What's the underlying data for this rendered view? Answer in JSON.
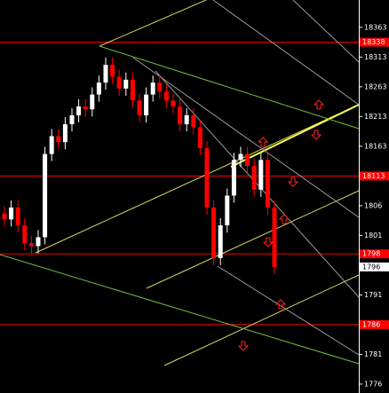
{
  "chart_data": {
    "type": "candlestick",
    "up_color": "#ffffff",
    "down_color": "#ff0000",
    "open": [
      18050,
      18040,
      18060,
      18030,
      18000,
      17995,
      18010,
      18150,
      18180,
      18170,
      18200,
      18215,
      18230,
      18225,
      18250,
      18270,
      18300,
      18280,
      18260,
      18275,
      18240,
      18215,
      18250,
      18270,
      18255,
      18240,
      18230,
      18200,
      18215,
      18195,
      18160,
      18060,
      17975,
      18030,
      18080,
      18140,
      18150,
      18130,
      18090,
      18140,
      18060
    ],
    "high": [
      18062,
      18072,
      18072,
      18042,
      18012,
      18022,
      18162,
      18192,
      18192,
      18212,
      18227,
      18242,
      18242,
      18262,
      18282,
      18312,
      18312,
      18292,
      18287,
      18287,
      18252,
      18262,
      18282,
      18282,
      18267,
      18252,
      18242,
      18227,
      18227,
      18207,
      18172,
      18072,
      18042,
      18092,
      18152,
      18162,
      18162,
      18142,
      18152,
      18152,
      18072
    ],
    "low": [
      18028,
      18028,
      18018,
      17988,
      17983,
      17983,
      17998,
      18138,
      18158,
      18158,
      18188,
      18203,
      18213,
      18213,
      18238,
      18258,
      18268,
      18248,
      18248,
      18228,
      18203,
      18203,
      18238,
      18243,
      18228,
      18218,
      18188,
      18188,
      18183,
      18148,
      18048,
      17963,
      17963,
      18018,
      18068,
      18128,
      18118,
      18078,
      18078,
      18048,
      17948
    ],
    "close": [
      18040,
      18060,
      18030,
      18000,
      17995,
      18010,
      18150,
      18180,
      18170,
      18200,
      18215,
      18230,
      18225,
      18250,
      18270,
      18300,
      18280,
      18260,
      18275,
      18240,
      18215,
      18250,
      18270,
      18255,
      18240,
      18230,
      18200,
      18215,
      18195,
      18160,
      18060,
      17975,
      18030,
      18080,
      18140,
      18150,
      18130,
      18090,
      18140,
      18060,
      17960
    ],
    "ylim": [
      17748,
      18409
    ],
    "yticks": [
      18363,
      18313,
      18263,
      18213,
      18163,
      {
        "value": 18063,
        "label": "1806"
      },
      {
        "value": 18013,
        "label": "1801"
      },
      {
        "value": 17913,
        "label": "1791"
      },
      {
        "value": 17813,
        "label": "1781"
      },
      {
        "value": 17763,
        "label": "1776"
      }
    ],
    "price_lines": [
      {
        "value": 18338,
        "label": "18338"
      },
      {
        "value": 18113,
        "label": "18113"
      },
      {
        "value": 17982,
        "label": "1798"
      },
      {
        "value": 17863,
        "label": "1786"
      }
    ],
    "price_line_color": "#ff0000",
    "last_price": {
      "value": 17960,
      "label": "1796"
    }
  }
}
